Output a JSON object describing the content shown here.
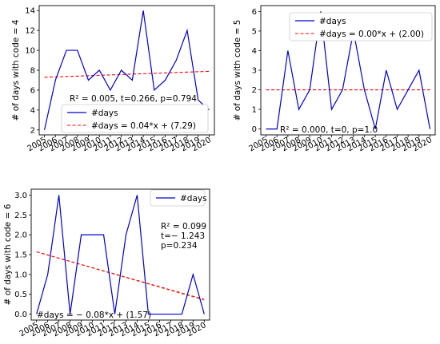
{
  "colors": {
    "series": "#0000cc",
    "fit": "#ff0000",
    "frame": "#000000"
  },
  "chart_data": [
    {
      "type": "line",
      "title": "",
      "xlabel": "",
      "ylabel": "# of days with code = 4",
      "x": [
        2005,
        2006,
        2007,
        2008,
        2009,
        2010,
        2011,
        2012,
        2013,
        2014,
        2015,
        2016,
        2017,
        2018,
        2019,
        2020
      ],
      "x_tick_labels": [
        "2005",
        "2006",
        "2007",
        "2008",
        "2009",
        "2010",
        "2011",
        "2012",
        "2013",
        "2014",
        "2015",
        "2016",
        "2017",
        "2018",
        "2019",
        "2020"
      ],
      "ylim": [
        1.5,
        14.5
      ],
      "y_ticks": [
        2,
        4,
        6,
        8,
        10,
        12,
        14
      ],
      "series": [
        {
          "name": "#days",
          "values": [
            2,
            7,
            10,
            10,
            7,
            8,
            6,
            8,
            7,
            14,
            6,
            7,
            9,
            12,
            5,
            4
          ]
        }
      ],
      "fit": {
        "name": "#days = 0.04*x + (7.29)",
        "slope": 0.04,
        "intercept": 7.29
      },
      "annotation": [
        "R² = 0.005, t=0.266, p=0.794"
      ],
      "legend_position": "lower-right"
    },
    {
      "type": "line",
      "title": "",
      "xlabel": "",
      "ylabel": "# of days with code = 5",
      "x": [
        2005,
        2006,
        2007,
        2008,
        2009,
        2010,
        2011,
        2012,
        2013,
        2014,
        2015,
        2016,
        2017,
        2018,
        2019,
        2020
      ],
      "x_tick_labels": [
        "2005",
        "2006",
        "2007",
        "2008",
        "2009",
        "2010",
        "2011",
        "2012",
        "2013",
        "2014",
        "2015",
        "2016",
        "2017",
        "2018",
        "2019",
        "2020"
      ],
      "ylim": [
        -0.3,
        6.3
      ],
      "y_ticks": [
        0,
        1,
        2,
        3,
        4,
        5,
        6
      ],
      "series": [
        {
          "name": "#days",
          "values": [
            0,
            0,
            4,
            1,
            2,
            6,
            1,
            2,
            5,
            2,
            0,
            3,
            1,
            2,
            3,
            0
          ]
        }
      ],
      "fit": {
        "name": "#days = 0.00*x + (2.00)",
        "slope": 0.0,
        "intercept": 2.0
      },
      "annotation": [
        "R² = 0.000, t=0, p=1.0"
      ],
      "legend_position": "upper-right"
    },
    {
      "type": "line",
      "title": "",
      "xlabel": "",
      "ylabel": "# of days with code = 6",
      "x": [
        2005,
        2006,
        2007,
        2008,
        2009,
        2010,
        2011,
        2012,
        2013,
        2014,
        2015,
        2016,
        2017,
        2018,
        2019,
        2020
      ],
      "x_tick_labels": [
        "2005",
        "2006",
        "2007",
        "2008",
        "2009",
        "2010",
        "2011",
        "2012",
        "2013",
        "2014",
        "2015",
        "2016",
        "2017",
        "2018",
        "2019",
        "2020"
      ],
      "ylim": [
        -0.15,
        3.15
      ],
      "y_ticks": [
        0.0,
        0.5,
        1.0,
        1.5,
        2.0,
        2.5,
        3.0
      ],
      "series": [
        {
          "name": "#days",
          "values": [
            0,
            1,
            3,
            0,
            2,
            2,
            2,
            0,
            2,
            3,
            0,
            0,
            0,
            0,
            1,
            0
          ]
        }
      ],
      "fit": {
        "name": "#days = − 0.08*x + (1.57)",
        "slope": -0.08,
        "intercept": 1.57
      },
      "annotation": [
        "R² = 0.099",
        "t=− 1.243",
        "p=0.234"
      ],
      "legend_position": "upper-right"
    }
  ]
}
